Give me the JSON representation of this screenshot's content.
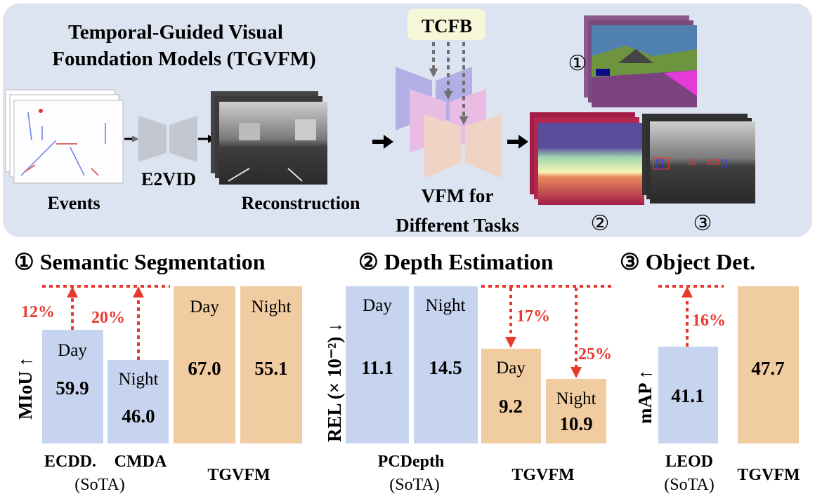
{
  "overview": {
    "title_line1": "Temporal-Guided Visual",
    "title_line2": "Foundation Models (TGVFM)",
    "events_label": "Events",
    "e2vid_label": "E2VID",
    "reconstruction_label": "Reconstruction",
    "tcfb_label": "TCFB",
    "vfm_label_line1": "VFM for",
    "vfm_label_line2": "Different Tasks",
    "output_markers": [
      "①",
      "②",
      "③"
    ],
    "colors": {
      "panel_bg": "#dde4f1",
      "tcfb_bg": "#f5f7d8",
      "encoder_purple": "#b3aee6",
      "encoder_pink": "#e8bce3",
      "encoder_peach": "#efd3c4",
      "e2vid_gray": "#c3c7cf"
    }
  },
  "results": {
    "colors": {
      "sota_bar": "#c7d4ef",
      "tgvfm_bar": "#f2cca1",
      "improvement": "#e8392f"
    },
    "segmentation": {
      "title": "① Semantic Segmentation",
      "metric": "MIoU ↑",
      "bars": [
        {
          "condition": "Day",
          "value": "59.9"
        },
        {
          "condition": "Night",
          "value": "46.0"
        },
        {
          "condition": "Day",
          "value": "67.0"
        },
        {
          "condition": "Night",
          "value": "55.1"
        }
      ],
      "improvements": [
        "12%",
        "20%"
      ],
      "methods": [
        "ECDD.",
        "CMDA",
        "TGVFM"
      ],
      "sota_note": "(SoTA)"
    },
    "depth": {
      "title": "② Depth Estimation",
      "metric": "REL (× 10⁻²) ↓",
      "bars": [
        {
          "condition": "Day",
          "value": "11.1"
        },
        {
          "condition": "Night",
          "value": "14.5"
        },
        {
          "condition": "Day",
          "value": "9.2"
        },
        {
          "condition": "Night",
          "value": "10.9"
        }
      ],
      "improvements": [
        "17%",
        "25%"
      ],
      "methods": [
        "PCDepth",
        "TGVFM"
      ],
      "sota_note": "(SoTA)"
    },
    "detection": {
      "title": "③ Object Det.",
      "metric": "mAP ↑",
      "bars": [
        {
          "value": "41.1"
        },
        {
          "value": "47.7"
        }
      ],
      "improvements": [
        "16%"
      ],
      "methods": [
        "LEOD",
        "TGVFM"
      ],
      "sota_note": "(SoTA)"
    }
  }
}
